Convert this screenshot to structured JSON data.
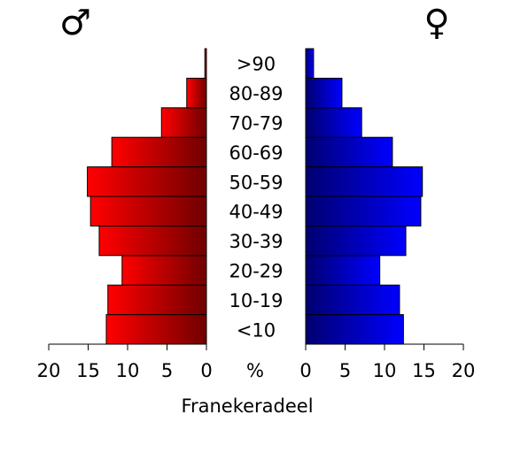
{
  "chart_data": {
    "type": "population_pyramid",
    "categories": [
      "<10",
      "10-19",
      "20-29",
      "30-39",
      "40-49",
      "50-59",
      "60-69",
      "70-79",
      "80-89",
      ">90"
    ],
    "series": [
      {
        "name": "♂",
        "color": "#ff0000",
        "values": [
          12.7,
          12.5,
          10.7,
          13.6,
          14.7,
          15.1,
          12.0,
          5.7,
          2.5,
          0.2
        ]
      },
      {
        "name": "♀",
        "color": "#0000ff",
        "values": [
          12.4,
          11.9,
          9.4,
          12.7,
          14.6,
          14.8,
          11.0,
          7.1,
          4.6,
          1.0
        ]
      }
    ],
    "xlim": [
      0,
      20
    ],
    "xticks": [
      0,
      5,
      10,
      15,
      20
    ],
    "center_label": "%",
    "xlabel": "Franekeradeel"
  }
}
